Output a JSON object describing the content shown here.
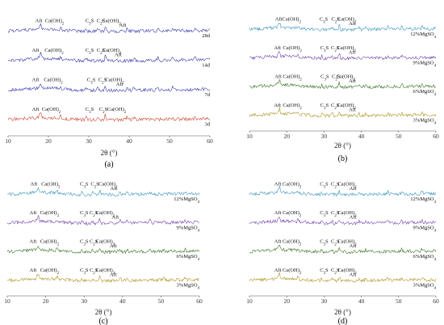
{
  "chart_data": [
    {
      "type": "line",
      "panel_label": "(a)",
      "xlabel": "2θ (°)",
      "x_ticks": [
        10,
        20,
        30,
        40,
        50,
        60
      ],
      "xlim": [
        10,
        60
      ],
      "series": [
        {
          "label": "28d",
          "color": "#2a2aa8",
          "annotations": [
            {
              "text": "Aft",
              "x": 17.6
            },
            {
              "text": "Ca(OH)2",
              "x": 21.5
            },
            {
              "text": "C3S",
              "x": 30.2
            },
            {
              "text": "C2S",
              "x": 33.0
            },
            {
              "text": "Ca(OH)2",
              "x": 35.6
            },
            {
              "text": "Aft",
              "x": 38.4
            }
          ]
        },
        {
          "label": "14d",
          "color": "#2a2aa8",
          "annotations": [
            {
              "text": "Aft",
              "x": 16.8
            },
            {
              "text": "Ca(OH)2",
              "x": 21.4
            },
            {
              "text": "C3S",
              "x": 30.2
            },
            {
              "text": "C2S",
              "x": 33.0
            },
            {
              "text": "Ca(OH)2",
              "x": 35.7
            },
            {
              "text": "Aft",
              "x": 37.3
            }
          ]
        },
        {
          "label": "7d",
          "color": "#2a2aa8",
          "annotations": [
            {
              "text": "Aft",
              "x": 16.8
            },
            {
              "text": "Ca(OH)2",
              "x": 21.2
            },
            {
              "text": "C3S",
              "x": 30.6
            },
            {
              "text": "C2S",
              "x": 33.4
            },
            {
              "text": "Ca(OH)2",
              "x": 36.4
            },
            {
              "text": "Aft",
              "x": 37.6
            }
          ]
        },
        {
          "label": "3d",
          "color": "#c83820",
          "annotations": [
            {
              "text": "Aft",
              "x": 16.8
            },
            {
              "text": "Ca(OH)2",
              "x": 20.7
            },
            {
              "text": "C3S",
              "x": 30.2
            },
            {
              "text": "C2S",
              "x": 33.6
            },
            {
              "text": "Ca(OH)2",
              "x": 36.9
            }
          ]
        }
      ]
    },
    {
      "type": "line",
      "panel_label": "(b)",
      "xlabel": "2θ (°)",
      "x_ticks": [
        10,
        20,
        30,
        40,
        50,
        60
      ],
      "xlim": [
        10,
        60
      ],
      "series": [
        {
          "label": "12%MgSO4",
          "color": "#2e8fb8",
          "annotations": [
            {
              "text": "Aft",
              "x": 17.8
            },
            {
              "text": "Ca(OH)2",
              "x": 21.3
            },
            {
              "text": "C3S",
              "x": 29.9
            },
            {
              "text": "C2S",
              "x": 33.1
            },
            {
              "text": "Ca(OH)2",
              "x": 36.1
            },
            {
              "text": "Aft",
              "x": 37.6
            }
          ]
        },
        {
          "label": "9%MgSO4",
          "color": "#6a3aa8",
          "annotations": [
            {
              "text": "Aft",
              "x": 17.5
            },
            {
              "text": "Ca(OH)2",
              "x": 21.5
            },
            {
              "text": "C3S",
              "x": 30.1
            },
            {
              "text": "C2S",
              "x": 33.0
            },
            {
              "text": "Ca(OH)2",
              "x": 36.0
            },
            {
              "text": "Aft",
              "x": 37.5
            }
          ]
        },
        {
          "label": "6%MgSO4",
          "color": "#2f6a1a",
          "annotations": [
            {
              "text": "Aft",
              "x": 17.7
            },
            {
              "text": "Ca(OH)2",
              "x": 21.5
            },
            {
              "text": "C3S",
              "x": 30.2
            },
            {
              "text": "C2S",
              "x": 33.2
            },
            {
              "text": "Ca(OH)2",
              "x": 35.8
            },
            {
              "text": "Aft",
              "x": 37.6
            }
          ]
        },
        {
          "label": "3%MgSO4",
          "color": "#a89018",
          "annotations": [
            {
              "text": "Aft",
              "x": 17.5
            },
            {
              "text": "Ca(OH)2",
              "x": 21.5
            },
            {
              "text": "C3S",
              "x": 30.1
            },
            {
              "text": "C2S",
              "x": 33.0
            },
            {
              "text": "Ca(OH)2",
              "x": 36.0
            },
            {
              "text": "Aft",
              "x": 37.6
            }
          ]
        }
      ]
    },
    {
      "type": "line",
      "panel_label": "(c)",
      "xlabel": "2θ (°)",
      "x_ticks": [
        10,
        20,
        30,
        40,
        50,
        60
      ],
      "xlim": [
        10,
        60
      ],
      "series": [
        {
          "label": "12%MgSO4",
          "color": "#2e8fb8",
          "annotations": [
            {
              "text": "Aft",
              "x": 16.9
            },
            {
              "text": "Ca(OH)2",
              "x": 21.3
            },
            {
              "text": "C3S",
              "x": 30.0
            },
            {
              "text": "C2S",
              "x": 32.8
            },
            {
              "text": "Ca(OH)2",
              "x": 36.2
            },
            {
              "text": "Aft",
              "x": 37.7
            }
          ]
        },
        {
          "label": "9%MgSO4",
          "color": "#6a3aa8",
          "annotations": [
            {
              "text": "Aft",
              "x": 16.7
            },
            {
              "text": "Ca(OH)2",
              "x": 21.0
            },
            {
              "text": "C3S",
              "x": 30.0
            },
            {
              "text": "C2S",
              "x": 32.5
            },
            {
              "text": "Ca(OH)2",
              "x": 35.5
            },
            {
              "text": "Aft",
              "x": 38.1
            }
          ]
        },
        {
          "label": "6%MgSO4",
          "color": "#2f6a1a",
          "annotations": [
            {
              "text": "Aft",
              "x": 16.7
            },
            {
              "text": "Ca(OH)2",
              "x": 21.0
            },
            {
              "text": "C3S",
              "x": 30.0
            },
            {
              "text": "C2S",
              "x": 32.5
            },
            {
              "text": "Ca(OH)2",
              "x": 35.5
            },
            {
              "text": "Aft",
              "x": 37.6
            }
          ]
        },
        {
          "label": "3%MgSO4",
          "color": "#a89018",
          "annotations": [
            {
              "text": "Aft",
              "x": 16.7
            },
            {
              "text": "Ca(OH)2",
              "x": 21.0
            },
            {
              "text": "C3S",
              "x": 30.0
            },
            {
              "text": "C2S",
              "x": 32.5
            },
            {
              "text": "Ca(OH)2",
              "x": 35.5
            },
            {
              "text": "Aft",
              "x": 37.6
            }
          ]
        }
      ]
    },
    {
      "type": "line",
      "panel_label": "(d)",
      "xlabel": "2θ (°)",
      "x_ticks": [
        10,
        20,
        30,
        40,
        50,
        60
      ],
      "xlim": [
        10,
        60
      ],
      "series": [
        {
          "label": "12%MgSO4",
          "color": "#2e8fb8",
          "annotations": [
            {
              "text": "Aft",
              "x": 17.6
            },
            {
              "text": "Ca(OH)2",
              "x": 21.4
            },
            {
              "text": "C3S",
              "x": 30.0
            },
            {
              "text": "C2S",
              "x": 33.0
            },
            {
              "text": "Ca(OH)2",
              "x": 36.2
            },
            {
              "text": "Aft",
              "x": 37.7
            }
          ]
        },
        {
          "label": "9%MgSO4",
          "color": "#6a3aa8",
          "annotations": [
            {
              "text": "Aft",
              "x": 17.6
            },
            {
              "text": "Ca(OH)2",
              "x": 21.4
            },
            {
              "text": "C3S",
              "x": 30.0
            },
            {
              "text": "C2S",
              "x": 33.0
            },
            {
              "text": "Ca(OH)2",
              "x": 36.2
            },
            {
              "text": "Aft",
              "x": 37.7
            }
          ]
        },
        {
          "label": "6%MgSO4",
          "color": "#2f6a1a",
          "annotations": [
            {
              "text": "Aft",
              "x": 17.6
            },
            {
              "text": "Ca(OH)2",
              "x": 21.4
            },
            {
              "text": "C3S",
              "x": 30.0
            },
            {
              "text": "C2S",
              "x": 33.0
            },
            {
              "text": "Ca(OH)2",
              "x": 36.2
            },
            {
              "text": "Aft",
              "x": 37.7
            }
          ]
        },
        {
          "label": "3%MgSO4",
          "color": "#a89018",
          "annotations": [
            {
              "text": "Aft",
              "x": 17.6
            },
            {
              "text": "Ca(OH)2",
              "x": 21.4
            },
            {
              "text": "C3S",
              "x": 30.0
            },
            {
              "text": "C2S",
              "x": 33.0
            },
            {
              "text": "Ca(OH)2",
              "x": 36.2
            },
            {
              "text": "Aft",
              "x": 37.7
            }
          ]
        }
      ]
    }
  ]
}
